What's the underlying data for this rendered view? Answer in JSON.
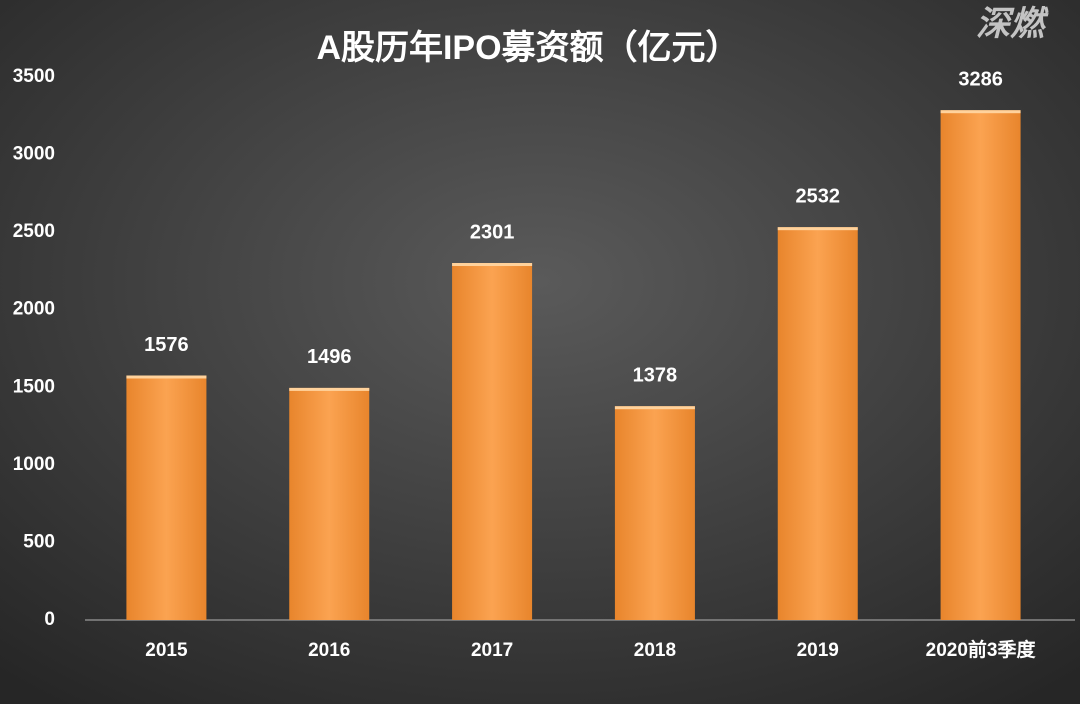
{
  "watermark": "深燃",
  "chart_data": {
    "type": "bar",
    "title": "A股历年IPO募资额（亿元）",
    "categories": [
      "2015",
      "2016",
      "2017",
      "2018",
      "2019",
      "2020前3季度"
    ],
    "values": [
      1576,
      1496,
      2301,
      1378,
      2532,
      3286
    ],
    "color": "#f59a3e",
    "ylim": [
      0,
      3500
    ],
    "yticks": [
      0,
      500,
      1000,
      1500,
      2000,
      2500,
      3000,
      3500
    ],
    "grid": false,
    "value_labels_shown": true
  }
}
